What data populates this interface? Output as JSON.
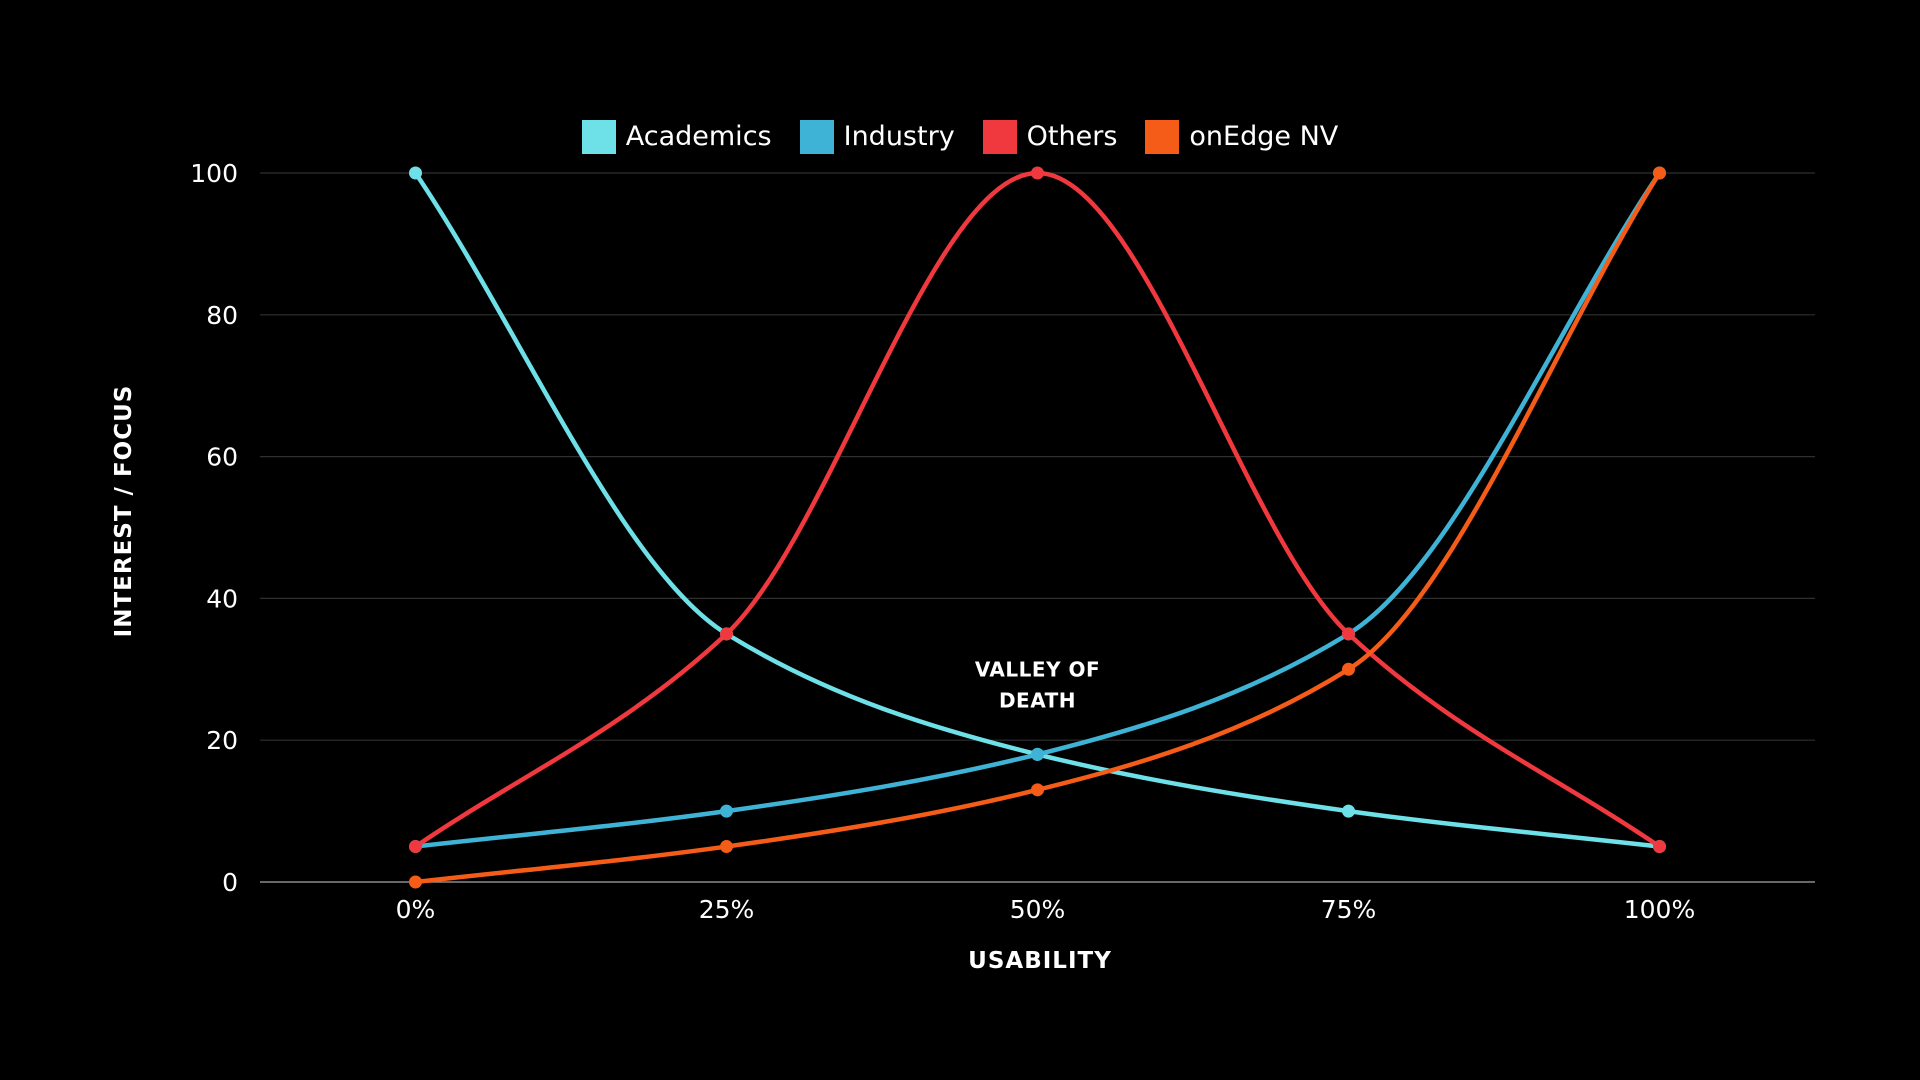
{
  "chart_data": {
    "type": "line",
    "title": "",
    "xlabel": "USABILITY",
    "ylabel": "INTEREST / FOCUS",
    "categories": [
      "0%",
      "25%",
      "50%",
      "75%",
      "100%"
    ],
    "x": [
      0,
      25,
      50,
      75,
      100
    ],
    "xlim": [
      -12.5,
      112.5
    ],
    "ylim": [
      0,
      100
    ],
    "yticks": [
      0,
      20,
      40,
      60,
      80,
      100
    ],
    "grid": true,
    "legend_position": "top-center",
    "series": [
      {
        "name": "Academics",
        "color": "#6ee0e8",
        "values": [
          100,
          35,
          18,
          10,
          5
        ]
      },
      {
        "name": "Industry",
        "color": "#3fb3d6",
        "values": [
          5,
          10,
          18,
          35,
          100
        ]
      },
      {
        "name": "Others",
        "color": "#f0383f",
        "values": [
          5,
          35,
          100,
          35,
          5
        ]
      },
      {
        "name": "onEdge NV",
        "color": "#f55c18",
        "values": [
          0,
          5,
          13,
          30,
          100
        ]
      }
    ],
    "annotations": [
      {
        "lines": [
          "VALLEY OF",
          "DEATH"
        ],
        "x": 50,
        "y": 29
      }
    ]
  }
}
